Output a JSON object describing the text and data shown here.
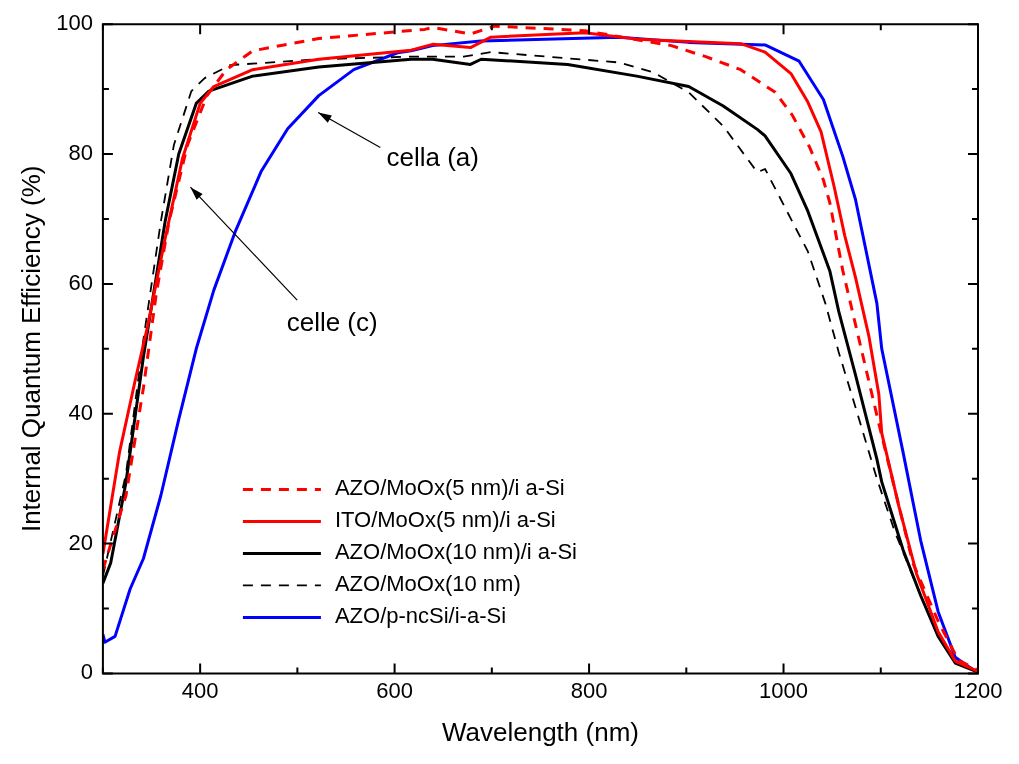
{
  "chart_data": {
    "type": "line",
    "xlabel": "Wavelength (nm)",
    "ylabel": "Internal Quantum Efficiency (%)",
    "xlim": [
      300,
      1200
    ],
    "ylim": [
      0,
      100
    ],
    "xticks": [
      {
        "value": 300,
        "label": null
      },
      400,
      {
        "value": 500,
        "label": null
      },
      600,
      {
        "value": 700,
        "label": null
      },
      800,
      {
        "value": 900,
        "label": null
      },
      1000,
      {
        "value": 1100,
        "label": null
      },
      1200
    ],
    "yticks": [
      0,
      {
        "value": 10,
        "label": null
      },
      20,
      {
        "value": 30,
        "label": null
      },
      40,
      {
        "value": 50,
        "label": null
      },
      60,
      {
        "value": 70,
        "label": null
      },
      80,
      {
        "value": 90,
        "label": null
      },
      100
    ],
    "grid": false,
    "legend": "bottom",
    "marker": "none",
    "annotations": [
      "cella (a)",
      "celle (c)"
    ],
    "series": [
      {
        "name": "AZO/MoOx(5 nm)/i a-Si",
        "color": "#ff0000",
        "line_style": "dashed",
        "x": [
          300,
          323.7,
          341.7,
          355,
          368,
          387,
          407,
          427,
          454,
          522,
          631,
          639,
          678,
          703,
          795.6,
          884.7,
          920,
          956,
          991.5,
          1009,
          1027,
          1041,
          1047.6,
          1061,
          1098,
          1133,
          1160,
          1180,
          1200
        ],
        "values": [
          16,
          27.4,
          44,
          58.6,
          69.6,
          81.4,
          89,
          93,
          95.9,
          97.8,
          99.2,
          99.5,
          98.5,
          99.7,
          99,
          96.7,
          95,
          93,
          89.5,
          86,
          81,
          76,
          72.5,
          62,
          38.5,
          17,
          7.7,
          2,
          0.5
        ]
      },
      {
        "name": "ITO/MoOx(5 nm)/i a-Si",
        "color": "#ff0000",
        "line_style": "solid",
        "x": [
          300,
          317,
          333,
          346,
          364,
          382,
          400,
          414,
          454,
          522,
          617,
          639,
          678,
          699,
          795.6,
          849,
          956,
          981,
          1007.6,
          1025,
          1038.6,
          1052,
          1063,
          1074,
          1087.7,
          1098,
          1101,
          1118.7,
          1136.7,
          1159,
          1176.6,
          1200
        ],
        "values": [
          18.4,
          34,
          45,
          53.5,
          67,
          79.4,
          87.8,
          90.4,
          93,
          94.6,
          96,
          96.9,
          96.4,
          98,
          98.7,
          97.7,
          97,
          95.7,
          92.4,
          88,
          83.4,
          75,
          67.4,
          61,
          52,
          43,
          37,
          25.7,
          15.4,
          6.4,
          1.9,
          0.3
        ]
      },
      {
        "name": "AZO/MoOx(10 nm)/i a-Si",
        "color": "#000000",
        "line_style": "solid",
        "x": [
          300,
          308,
          323.7,
          341.7,
          364,
          378,
          396,
          409,
          454,
          522,
          617,
          639,
          678,
          689,
          778,
          849,
          902.5,
          938,
          973,
          981,
          1007.6,
          1025,
          1047.6,
          1056.7,
          1074,
          1096,
          1101,
          1123,
          1141,
          1159,
          1176.6,
          1200
        ],
        "values": [
          13.9,
          17,
          29.4,
          48.8,
          69.6,
          80,
          87.8,
          89.7,
          92,
          93.4,
          94.6,
          94.6,
          93.8,
          94.6,
          93.8,
          92,
          90.4,
          87.4,
          83.8,
          82.8,
          77,
          71.2,
          62,
          55.8,
          46,
          33,
          29.5,
          19,
          12,
          5.7,
          1.6,
          0.2
        ]
      },
      {
        "name": "AZO/MoOx(10 nm)",
        "color": "#000000",
        "line_style": "dashed",
        "x": [
          300,
          323.7,
          341.7,
          359.6,
          373,
          391,
          404.7,
          431,
          522,
          617,
          671,
          699,
          831,
          866,
          902.5,
          938,
          973,
          981,
          1007.6,
          1025,
          1043,
          1056.7,
          1074,
          1096,
          1114.5,
          1141,
          1159,
          1180,
          1200
        ],
        "values": [
          15,
          30.7,
          51.5,
          69.6,
          81.4,
          89.7,
          91.7,
          93.7,
          94.6,
          95,
          95,
          95.7,
          94.1,
          92.6,
          89.5,
          84.3,
          77.2,
          77.7,
          70,
          65,
          57,
          49.5,
          41,
          30,
          21.8,
          12,
          6,
          1.5,
          0.3
        ]
      },
      {
        "name": "AZO/p-ncSi/i-a-Si",
        "color": "#0000ff",
        "line_style": "solid",
        "x": [
          300,
          302,
          312.5,
          328,
          341.7,
          359.6,
          377.8,
          396,
          414,
          436,
          463,
          490,
          522,
          558,
          603,
          617,
          639,
          688.7,
          831,
          902.5,
          981,
          1016,
          1041,
          1061,
          1074,
          1096,
          1101,
          1123,
          1141,
          1159,
          1176.6,
          1194.6
        ],
        "values": [
          6,
          4.8,
          5.7,
          13,
          17.7,
          27.4,
          39,
          50,
          59,
          68,
          77.4,
          83.9,
          89,
          93,
          95.6,
          95.9,
          96.7,
          97.4,
          98,
          97.2,
          96.8,
          94.3,
          88.4,
          79.6,
          73,
          57,
          50,
          34,
          20.5,
          9.5,
          2.5,
          0.6
        ]
      }
    ]
  }
}
